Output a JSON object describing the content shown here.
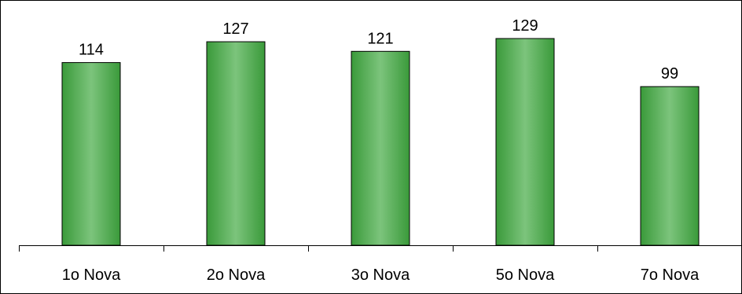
{
  "chart_data": {
    "type": "bar",
    "categories": [
      "1o Nova",
      "2o Nova",
      "3o Nova",
      "5o Nova",
      "7o Nova"
    ],
    "values": [
      114,
      127,
      121,
      129,
      99
    ],
    "data_labels": [
      "114",
      "127",
      "121",
      "129",
      "99"
    ],
    "title": "",
    "xlabel": "",
    "ylabel": "",
    "ylim": [
      0,
      140
    ],
    "grid": false,
    "legend": "none",
    "bar_color": "#3a9a3a",
    "bar_highlight": "#7cc47c",
    "bar_edge": "#000000"
  }
}
